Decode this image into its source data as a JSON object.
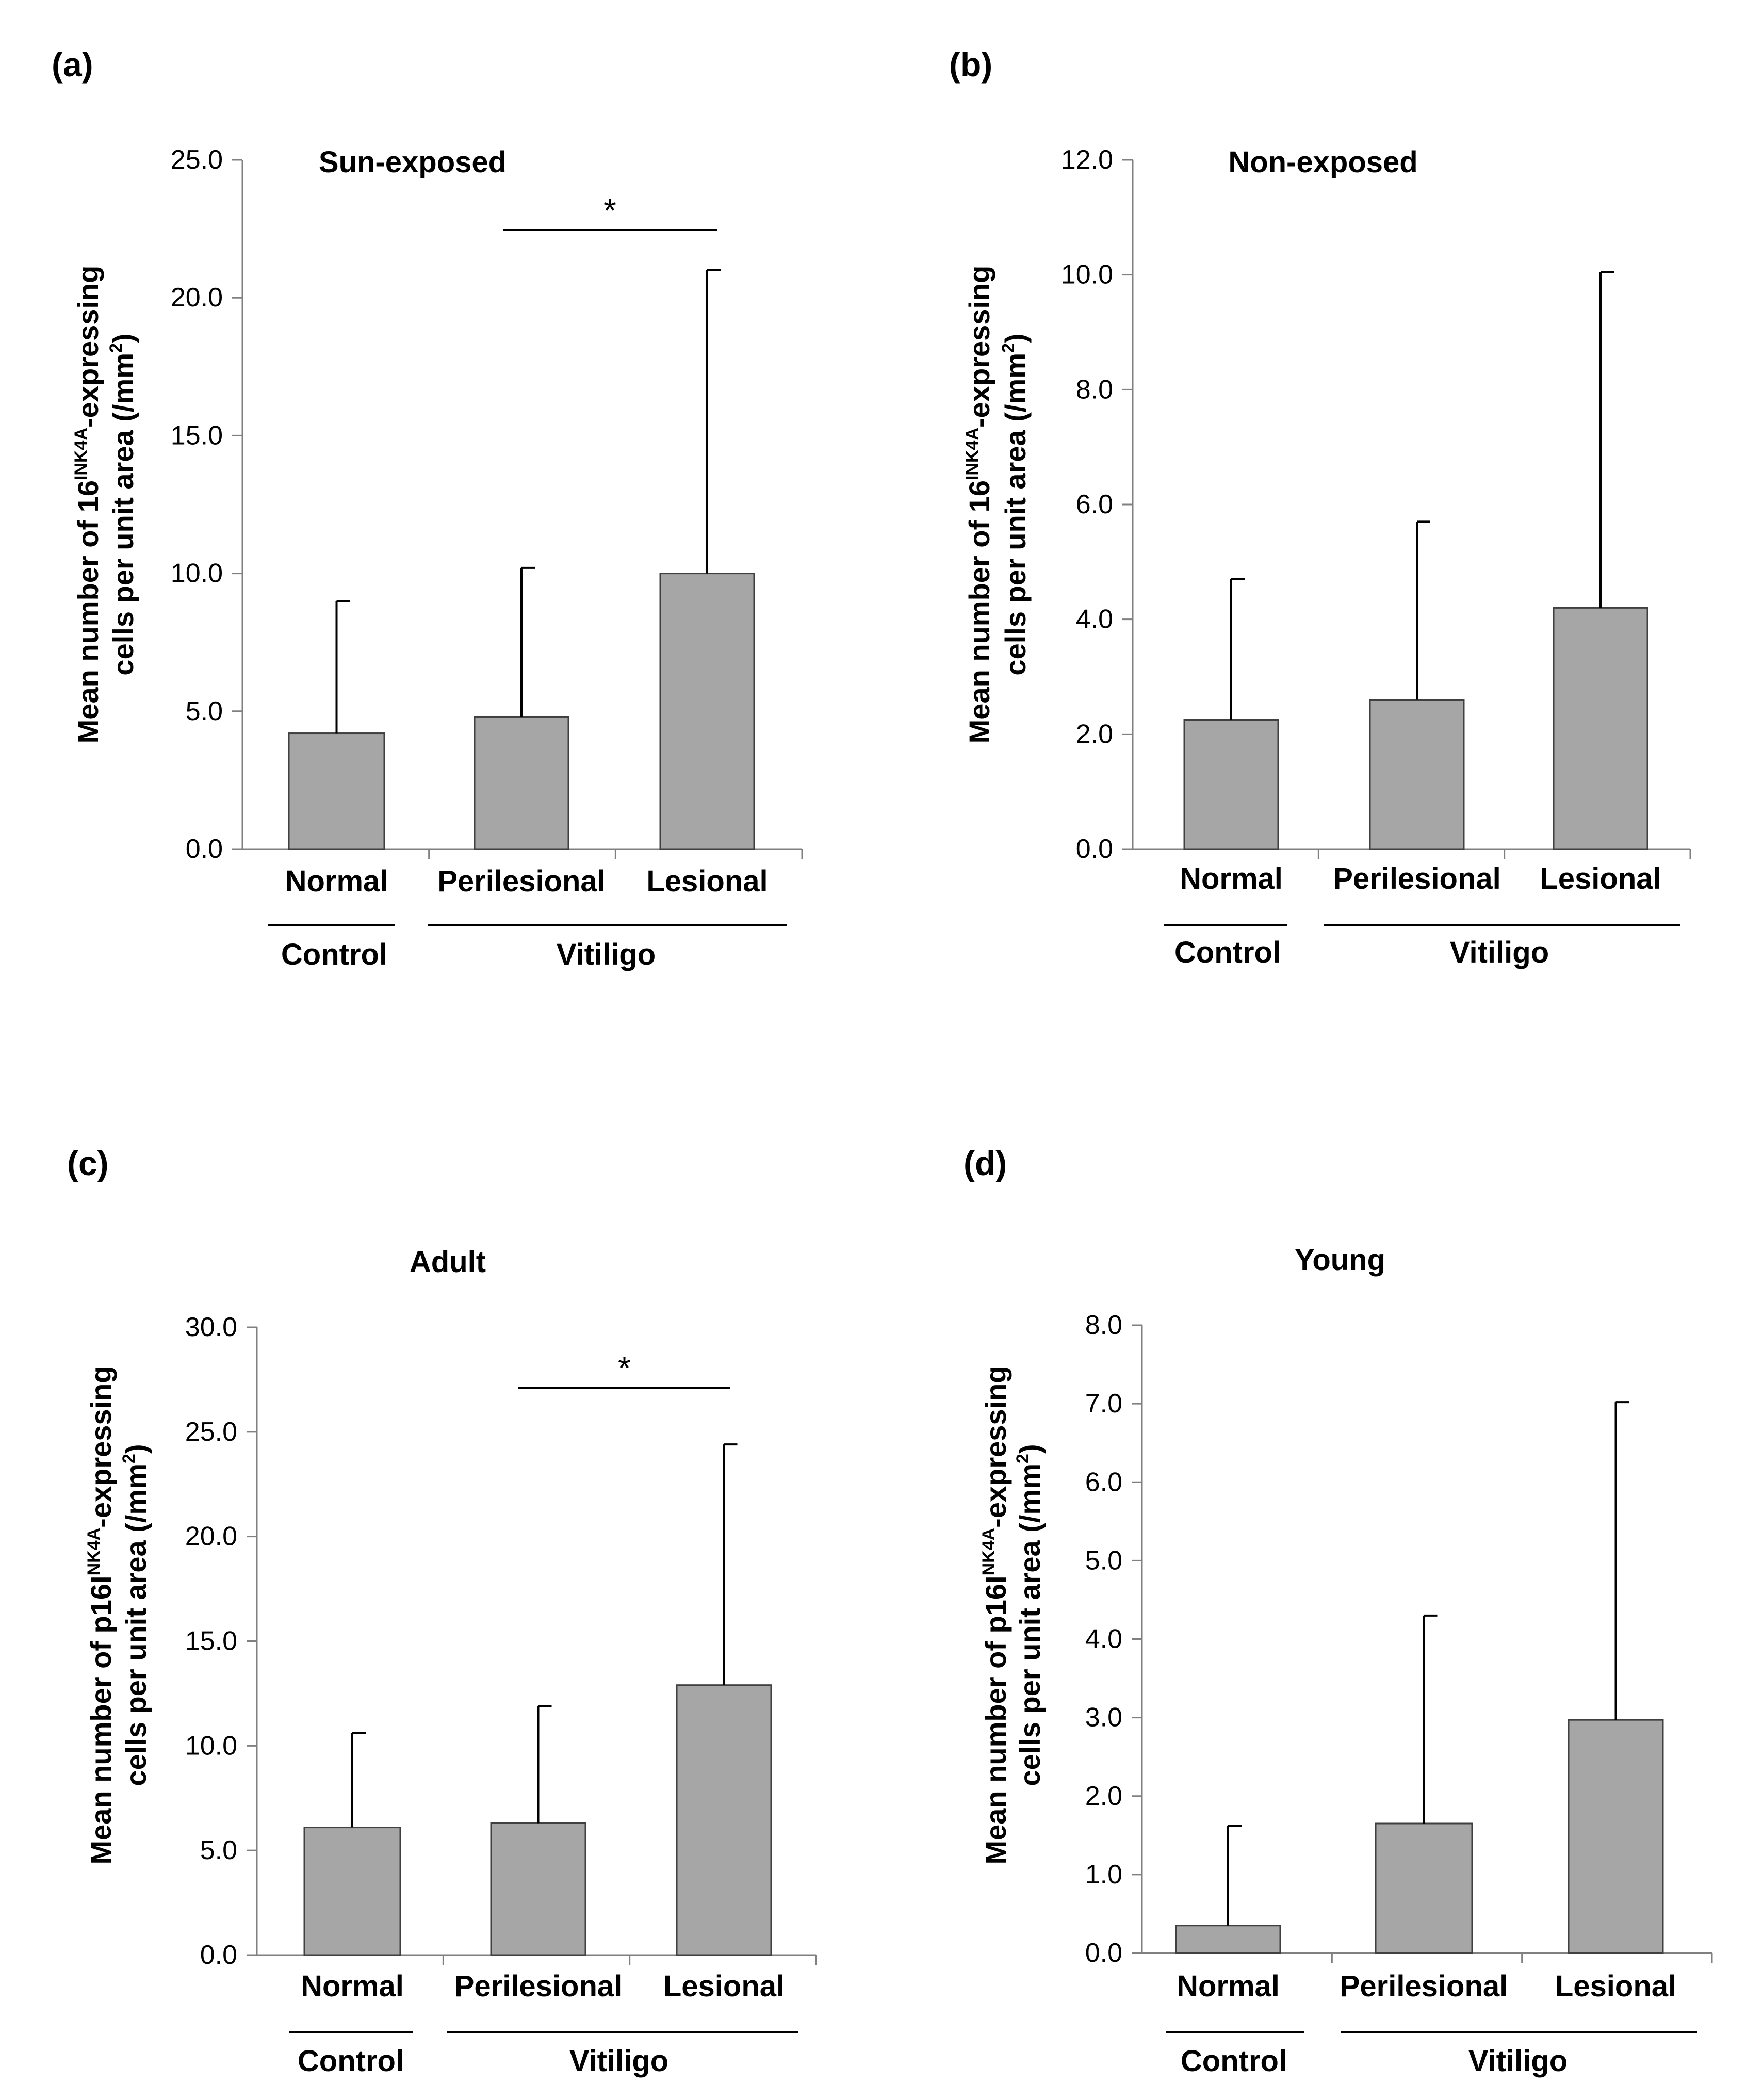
{
  "chart_data": [
    {
      "type": "bar",
      "panel": "(a)",
      "title": "Sun-exposed",
      "ylabel": {
        "line1_pre": "Mean number of 16",
        "line1_sup": "INK4A",
        "line1_post": "-expressing",
        "line2_pre": "cells per  unit  area (/mm",
        "line2_sup": "2",
        "line2_post": ")"
      },
      "ylim": [
        0,
        25
      ],
      "yticks": [
        0,
        5,
        10,
        15,
        20,
        25
      ],
      "ytick_labels": [
        "0.0",
        "5.0",
        "10.0",
        "15.0",
        "20.0",
        "25.0"
      ],
      "categories": [
        "Normal",
        "Perilesional",
        "Lesional"
      ],
      "values": [
        4.2,
        4.8,
        10.0
      ],
      "errors": [
        4.8,
        5.4,
        11.0
      ],
      "groups": [
        {
          "label": "Control",
          "categories": [
            "Normal"
          ]
        },
        {
          "label": "Vitiligo",
          "categories": [
            "Perilesional",
            "Lesional"
          ]
        }
      ],
      "significance": {
        "between": [
          "Perilesional",
          "Lesional"
        ],
        "label": "*"
      }
    },
    {
      "type": "bar",
      "panel": "(b)",
      "title": "Non-exposed",
      "ylabel": {
        "line1_pre": "Mean number of 16",
        "line1_sup": "INK4A",
        "line1_post": "-expressing",
        "line2_pre": "cells per  unit  area (/mm",
        "line2_sup": "2",
        "line2_post": ")"
      },
      "ylim": [
        0,
        12
      ],
      "yticks": [
        0,
        2,
        4,
        6,
        8,
        10,
        12
      ],
      "ytick_labels": [
        "0.0",
        "2.0",
        "4.0",
        "6.0",
        "8.0",
        "10.0",
        "12.0"
      ],
      "categories": [
        "Normal",
        "Perilesional",
        "Lesional"
      ],
      "values": [
        2.25,
        2.6,
        4.2
      ],
      "errors": [
        2.45,
        3.1,
        5.85
      ],
      "groups": [
        {
          "label": "Control",
          "categories": [
            "Normal"
          ]
        },
        {
          "label": "Vitiligo",
          "categories": [
            "Perilesional",
            "Lesional"
          ]
        }
      ],
      "significance": null
    },
    {
      "type": "bar",
      "panel": "(c)",
      "title": "Adult",
      "ylabel": {
        "line1_pre": "Mean number of p16I",
        "line1_sup": "NK4A",
        "line1_post": "-expressing",
        "line2_pre": "cells per  unit  area (/mm",
        "line2_sup": "2",
        "line2_post": ")"
      },
      "ylim": [
        0,
        30
      ],
      "yticks": [
        0,
        5,
        10,
        15,
        20,
        25,
        30
      ],
      "ytick_labels": [
        "0.0",
        "5.0",
        "10.0",
        "15.0",
        "20.0",
        "25.0",
        "30.0"
      ],
      "categories": [
        "Normal",
        "Perilesional",
        "Lesional"
      ],
      "values": [
        6.1,
        6.3,
        12.9
      ],
      "errors": [
        4.5,
        5.6,
        11.5
      ],
      "groups": [
        {
          "label": "Control",
          "categories": [
            "Normal"
          ]
        },
        {
          "label": "Vitiligo",
          "categories": [
            "Perilesional",
            "Lesional"
          ]
        }
      ],
      "significance": {
        "between": [
          "Perilesional",
          "Lesional"
        ],
        "label": "*"
      }
    },
    {
      "type": "bar",
      "panel": "(d)",
      "title": "Young",
      "ylabel": {
        "line1_pre": "Mean number of p16I",
        "line1_sup": "NK4A",
        "line1_post": "-expressing",
        "line2_pre": "cells per  unit  area (/mm",
        "line2_sup": "2",
        "line2_post": ")"
      },
      "ylim": [
        0,
        8
      ],
      "yticks": [
        0,
        1,
        2,
        3,
        4,
        5,
        6,
        7,
        8
      ],
      "ytick_labels": [
        "0.0",
        "1.0",
        "2.0",
        "3.0",
        "4.0",
        "5.0",
        "6.0",
        "7.0",
        "8.0"
      ],
      "categories": [
        "Normal",
        "Perilesional",
        "Lesional"
      ],
      "values": [
        0.35,
        1.65,
        2.97
      ],
      "errors": [
        1.27,
        2.65,
        4.05
      ],
      "groups": [
        {
          "label": "Control",
          "categories": [
            "Normal"
          ]
        },
        {
          "label": "Vitiligo",
          "categories": [
            "Perilesional",
            "Lesional"
          ]
        }
      ],
      "significance": null
    }
  ]
}
